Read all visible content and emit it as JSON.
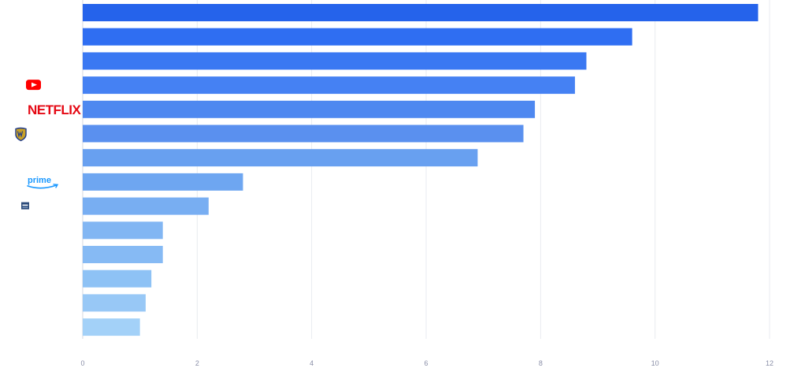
{
  "chart_data": {
    "type": "bar",
    "orientation": "horizontal",
    "xlim": [
      0,
      12
    ],
    "x_ticks": [
      "0",
      "2",
      "4",
      "6",
      "8",
      "10",
      "12"
    ],
    "grid": true,
    "values": [
      11.8,
      9.6,
      8.8,
      8.6,
      7.9,
      7.7,
      6.9,
      2.8,
      2.2,
      1.4,
      1.4,
      1.2,
      1.1,
      1.0
    ],
    "bar_colors": [
      "#2563eb",
      "#2f6ef2",
      "#3a78f2",
      "#4581f3",
      "#4e88f0",
      "#5a90ef",
      "#68a0f0",
      "#6ea6f1",
      "#78aef2",
      "#82b6f3",
      "#86baf4",
      "#8ec2f5",
      "#98c8f6",
      "#a3d1f8"
    ],
    "logos": [
      {
        "row": 3,
        "icon": "youtube-logo-icon"
      },
      {
        "row": 4,
        "icon": "netflix-logo-icon",
        "text": "NETFLIX"
      },
      {
        "row": 5,
        "icon": "warner-bros-logo-icon"
      },
      {
        "row": 7,
        "icon": "prime-video-logo-icon",
        "text": "prime"
      },
      {
        "row": 8,
        "icon": "small-studio-logo-icon"
      }
    ]
  }
}
